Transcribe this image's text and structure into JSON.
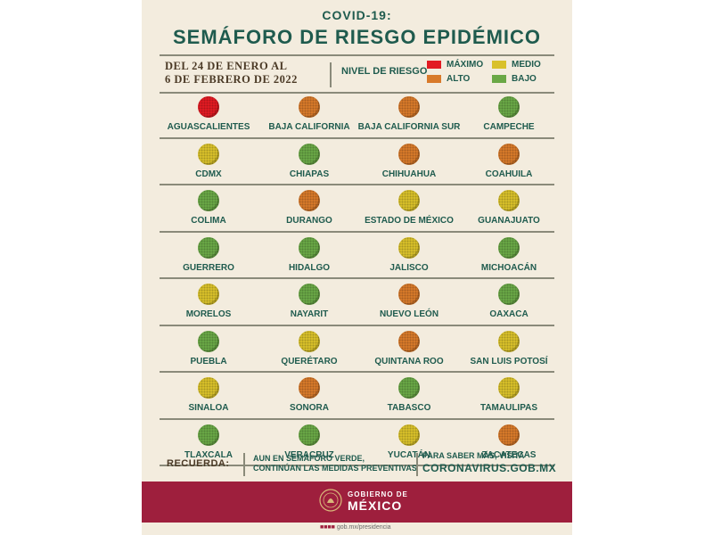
{
  "header": {
    "sup": "COVID-19:",
    "title": "SEMÁFORO DE RIESGO EPIDÉMICO"
  },
  "dates": {
    "line1": "DEL 24 DE ENERO AL",
    "line2": "6 DE FEBRERO DE 2022"
  },
  "legend": {
    "title": "NIVEL DE RIESGO",
    "maximo": "MÁXIMO",
    "alto": "ALTO",
    "medio": "MEDIO",
    "bajo": "BAJO"
  },
  "colors": {
    "maximo": "#e21b23",
    "alto": "#d87a2a",
    "medio": "#d9c12a",
    "bajo": "#6aa846"
  },
  "states": [
    {
      "name": "AGUASCALIENTES",
      "level": "maximo"
    },
    {
      "name": "BAJA CALIFORNIA",
      "level": "alto"
    },
    {
      "name": "BAJA CALIFORNIA SUR",
      "level": "alto"
    },
    {
      "name": "CAMPECHE",
      "level": "bajo"
    },
    {
      "name": "CDMX",
      "level": "medio"
    },
    {
      "name": "CHIAPAS",
      "level": "bajo"
    },
    {
      "name": "CHIHUAHUA",
      "level": "alto"
    },
    {
      "name": "COAHUILA",
      "level": "alto"
    },
    {
      "name": "COLIMA",
      "level": "bajo"
    },
    {
      "name": "DURANGO",
      "level": "alto"
    },
    {
      "name": "ESTADO DE MÉXICO",
      "level": "medio"
    },
    {
      "name": "GUANAJUATO",
      "level": "medio"
    },
    {
      "name": "GUERRERO",
      "level": "bajo"
    },
    {
      "name": "HIDALGO",
      "level": "bajo"
    },
    {
      "name": "JALISCO",
      "level": "medio"
    },
    {
      "name": "MICHOACÁN",
      "level": "bajo"
    },
    {
      "name": "MORELOS",
      "level": "medio"
    },
    {
      "name": "NAYARIT",
      "level": "bajo"
    },
    {
      "name": "NUEVO LEÓN",
      "level": "alto"
    },
    {
      "name": "OAXACA",
      "level": "bajo"
    },
    {
      "name": "PUEBLA",
      "level": "bajo"
    },
    {
      "name": "QUERÉTARO",
      "level": "medio"
    },
    {
      "name": "QUINTANA ROO",
      "level": "alto"
    },
    {
      "name": "SAN LUIS POTOSÍ",
      "level": "medio"
    },
    {
      "name": "SINALOA",
      "level": "medio"
    },
    {
      "name": "SONORA",
      "level": "alto"
    },
    {
      "name": "TABASCO",
      "level": "bajo"
    },
    {
      "name": "TAMAULIPAS",
      "level": "medio"
    },
    {
      "name": "TLAXCALA",
      "level": "bajo"
    },
    {
      "name": "VERACRUZ",
      "level": "bajo"
    },
    {
      "name": "YUCATÁN",
      "level": "medio"
    },
    {
      "name": "ZACATECAS",
      "level": "alto"
    }
  ],
  "footer": {
    "recuerda": "RECUERDA:",
    "medidas1": "AUN EN SEMÁFORO VERDE,",
    "medidas2": "CONTINÚAN LAS MEDIDAS PREVENTIVAS",
    "visit": "PARA SABER MÁS, VISITA",
    "url": "CORONAVIRUS.GOB.MX"
  },
  "brand": {
    "line1": "GOBIERNO DE",
    "line2": "MÉXICO",
    "social": "gob.mx/presidencia",
    "band_color": "#9e1f3d"
  }
}
